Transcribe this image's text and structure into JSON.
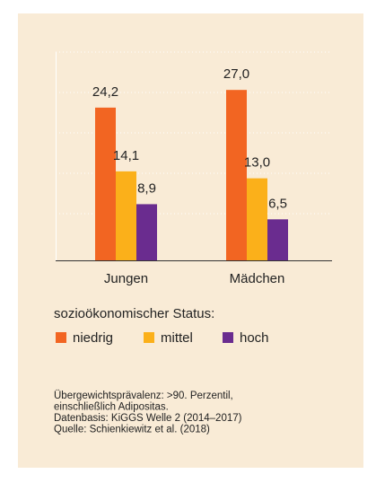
{
  "chart_data": {
    "type": "bar",
    "categories": [
      "Jungen",
      "Mädchen"
    ],
    "series": [
      {
        "name": "niedrig",
        "color": "#f26522",
        "values": [
          24.2,
          27.0
        ],
        "value_labels": [
          "24,2",
          "27,0"
        ]
      },
      {
        "name": "mittel",
        "color": "#fbb01a",
        "values": [
          14.1,
          13.0
        ],
        "value_labels": [
          "14,1",
          "13,0"
        ]
      },
      {
        "name": "hoch",
        "color": "#6a2c8f",
        "values": [
          8.9,
          6.5
        ],
        "value_labels": [
          "8,9",
          "6,5"
        ]
      }
    ],
    "ylim": [
      0,
      33
    ],
    "legend_title": "sozioökonomischer Status:",
    "notes": [
      "Übergewichtsprävalenz: >90. Perzentil,",
      "einschließlich Adipositas.",
      "Datenbasis: KiGGS Welle 2 (2014–2017)",
      "Quelle: Schienkiewitz et al. (2018)"
    ]
  }
}
